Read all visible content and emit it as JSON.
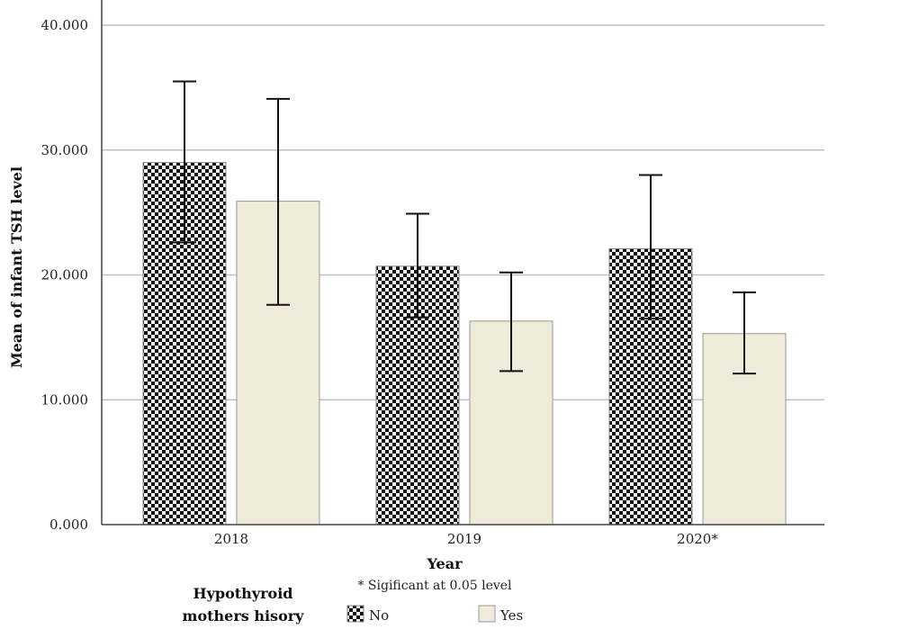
{
  "chart_data": {
    "type": "bar",
    "categories": [
      "2018",
      "2019",
      "2020*"
    ],
    "series": [
      {
        "name": "No",
        "values": [
          29.0,
          20.7,
          22.1
        ],
        "error_low": [
          22.6,
          16.6,
          16.5
        ],
        "error_high": [
          35.5,
          24.9,
          28.0
        ],
        "color": "#111111",
        "pattern": "checkerboard"
      },
      {
        "name": "Yes",
        "values": [
          25.9,
          16.3,
          15.3
        ],
        "error_low": [
          17.6,
          12.3,
          12.1
        ],
        "error_high": [
          34.1,
          20.2,
          18.6
        ],
        "color": "#efeada",
        "pattern": "solid"
      }
    ],
    "ylabel": "Mean of infant TSH level",
    "xlabel": "Year",
    "ylim": [
      0,
      40
    ],
    "yticks": [
      "0.000",
      "10.000",
      "20.000",
      "30.000",
      "40.000"
    ],
    "grid": true,
    "legend": {
      "title_line1": "Hypothyroid",
      "title_line2": "mothers hisory",
      "position": "bottom"
    },
    "note": "* Sigificant at 0.05 level"
  }
}
